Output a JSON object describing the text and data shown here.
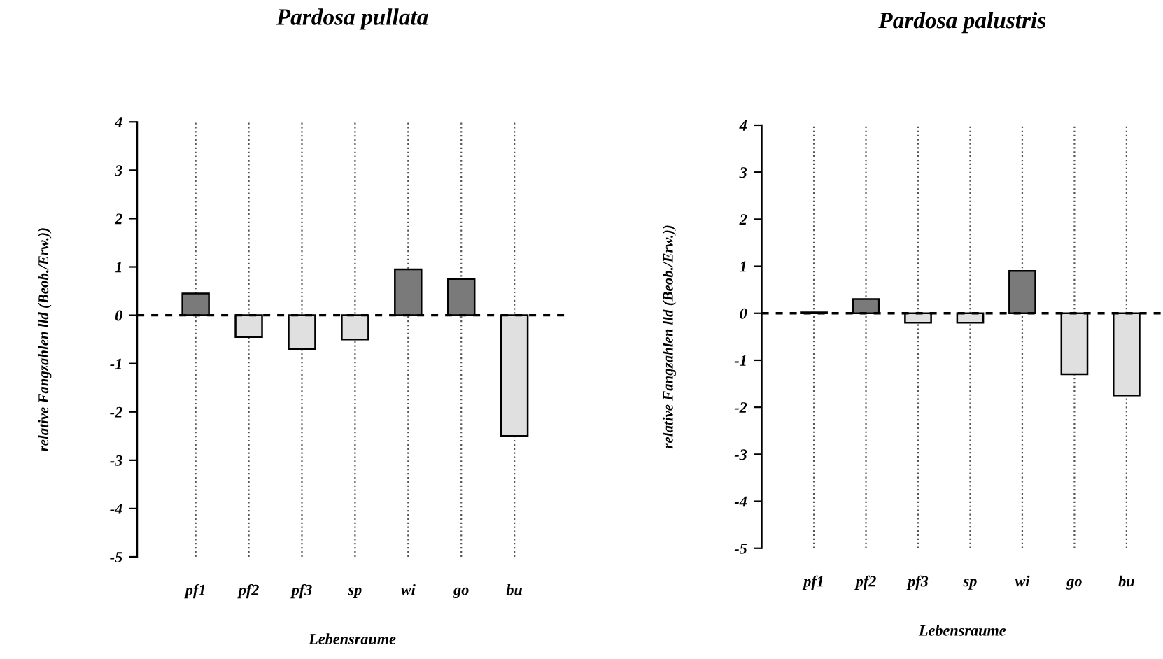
{
  "chart_data": [
    {
      "type": "bar",
      "title": "Pardosa pullata",
      "xlabel": "Lebensraume",
      "ylabel": "relative Fangzahlen lld (Beob./Erw.))",
      "categories": [
        "pf1",
        "pf2",
        "pf3",
        "sp",
        "wi",
        "go",
        "bu"
      ],
      "values": [
        0.45,
        -0.45,
        -0.7,
        -0.5,
        0.95,
        0.75,
        -2.5
      ],
      "colors": [
        "#7a7a7a",
        "#e0e0e0",
        "#e0e0e0",
        "#e0e0e0",
        "#7a7a7a",
        "#7a7a7a",
        "#e0e0e0"
      ],
      "ylim": [
        -5,
        4
      ],
      "yticks": [
        -5,
        -4,
        -3,
        -2,
        -1,
        0,
        1,
        2,
        3,
        4
      ],
      "grid": "x",
      "ref_lines": [
        {
          "axis": "y",
          "value": 0,
          "line_style": "dashed",
          "color": "#000000"
        }
      ]
    },
    {
      "type": "bar",
      "title": "Pardosa palustris",
      "xlabel": "Lebensraume",
      "ylabel": "relative Fangzahlen lld (Beob./Erw.))",
      "categories": [
        "pf1",
        "pf2",
        "pf3",
        "sp",
        "wi",
        "go",
        "bu"
      ],
      "values": [
        0.02,
        0.3,
        -0.2,
        -0.2,
        0.9,
        -1.3,
        -1.75
      ],
      "colors": [
        "#7a7a7a",
        "#7a7a7a",
        "#e0e0e0",
        "#e0e0e0",
        "#7a7a7a",
        "#e0e0e0",
        "#e0e0e0"
      ],
      "ylim": [
        -5,
        4
      ],
      "yticks": [
        -5,
        -4,
        -3,
        -2,
        -1,
        0,
        1,
        2,
        3,
        4
      ],
      "grid": "x",
      "ref_lines": [
        {
          "axis": "y",
          "value": 0,
          "line_style": "dashed",
          "color": "#000000"
        }
      ]
    }
  ]
}
